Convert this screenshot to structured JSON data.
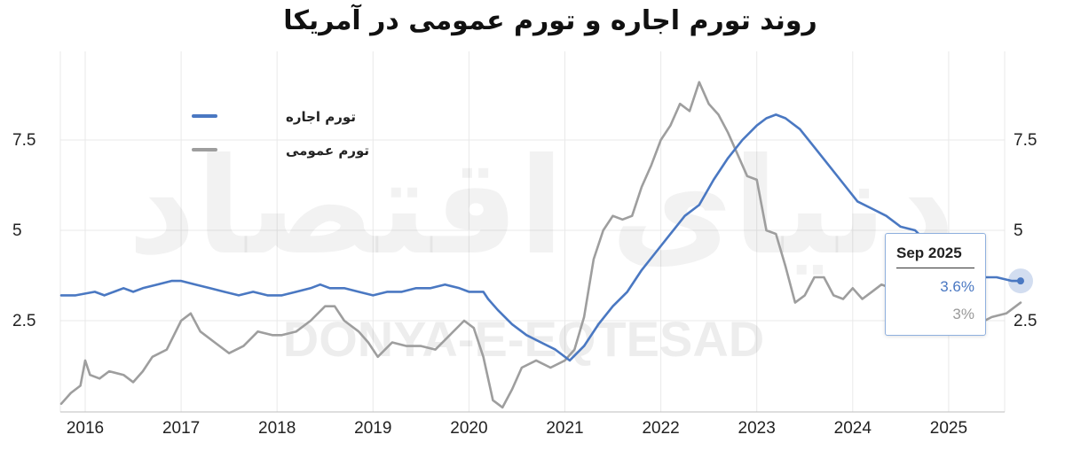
{
  "chart_data": {
    "type": "line",
    "title": "روند تورم اجاره و تورم عمومی در آمریکا",
    "watermark_text": "DONYA-E-EQTESAD",
    "watermark_logo_text": "دنیای اقتصاد",
    "x_ticks": [
      "2016",
      "2017",
      "2018",
      "2019",
      "2020",
      "2021",
      "2022",
      "2023",
      "2024",
      "2025"
    ],
    "y_ticks": [
      "2.5",
      "5",
      "7.5"
    ],
    "ylim": [
      0,
      10
    ],
    "xlim": [
      2015.76,
      2025.8
    ],
    "grid": true,
    "legend_placement": "top-left",
    "series": [
      {
        "name": "تورم اجاره",
        "color": "#4a78c2",
        "points": [
          [
            2015.75,
            3.2
          ],
          [
            2015.9,
            3.2
          ],
          [
            2016.1,
            3.3
          ],
          [
            2016.2,
            3.2
          ],
          [
            2016.3,
            3.3
          ],
          [
            2016.4,
            3.4
          ],
          [
            2016.5,
            3.3
          ],
          [
            2016.6,
            3.4
          ],
          [
            2016.75,
            3.5
          ],
          [
            2016.9,
            3.6
          ],
          [
            2017.0,
            3.6
          ],
          [
            2017.15,
            3.5
          ],
          [
            2017.3,
            3.4
          ],
          [
            2017.45,
            3.3
          ],
          [
            2017.6,
            3.2
          ],
          [
            2017.75,
            3.3
          ],
          [
            2017.9,
            3.2
          ],
          [
            2018.05,
            3.2
          ],
          [
            2018.2,
            3.3
          ],
          [
            2018.35,
            3.4
          ],
          [
            2018.45,
            3.5
          ],
          [
            2018.55,
            3.4
          ],
          [
            2018.7,
            3.4
          ],
          [
            2018.85,
            3.3
          ],
          [
            2019.0,
            3.2
          ],
          [
            2019.15,
            3.3
          ],
          [
            2019.3,
            3.3
          ],
          [
            2019.45,
            3.4
          ],
          [
            2019.6,
            3.4
          ],
          [
            2019.75,
            3.5
          ],
          [
            2019.9,
            3.4
          ],
          [
            2020.0,
            3.3
          ],
          [
            2020.15,
            3.3
          ],
          [
            2020.2,
            3.1
          ],
          [
            2020.3,
            2.8
          ],
          [
            2020.45,
            2.4
          ],
          [
            2020.6,
            2.1
          ],
          [
            2020.75,
            1.9
          ],
          [
            2020.9,
            1.7
          ],
          [
            2021.05,
            1.4
          ],
          [
            2021.2,
            1.8
          ],
          [
            2021.35,
            2.4
          ],
          [
            2021.5,
            2.9
          ],
          [
            2021.65,
            3.3
          ],
          [
            2021.8,
            3.9
          ],
          [
            2021.95,
            4.4
          ],
          [
            2022.1,
            4.9
          ],
          [
            2022.25,
            5.4
          ],
          [
            2022.4,
            5.7
          ],
          [
            2022.55,
            6.4
          ],
          [
            2022.7,
            7.0
          ],
          [
            2022.85,
            7.5
          ],
          [
            2023.0,
            7.9
          ],
          [
            2023.1,
            8.1
          ],
          [
            2023.2,
            8.2
          ],
          [
            2023.3,
            8.1
          ],
          [
            2023.45,
            7.8
          ],
          [
            2023.6,
            7.3
          ],
          [
            2023.75,
            6.8
          ],
          [
            2023.9,
            6.3
          ],
          [
            2024.05,
            5.8
          ],
          [
            2024.2,
            5.6
          ],
          [
            2024.35,
            5.4
          ],
          [
            2024.5,
            5.1
          ],
          [
            2024.65,
            5.0
          ],
          [
            2024.8,
            4.6
          ],
          [
            2024.95,
            4.2
          ],
          [
            2025.1,
            3.9
          ],
          [
            2025.3,
            3.7
          ],
          [
            2025.5,
            3.7
          ],
          [
            2025.66,
            3.6
          ],
          [
            2025.75,
            3.6
          ]
        ]
      },
      {
        "name": "تورم عمومی",
        "color": "#9e9e9e",
        "points": [
          [
            2015.75,
            0.2
          ],
          [
            2015.85,
            0.5
          ],
          [
            2015.95,
            0.7
          ],
          [
            2016.0,
            1.4
          ],
          [
            2016.05,
            1.0
          ],
          [
            2016.15,
            0.9
          ],
          [
            2016.25,
            1.1
          ],
          [
            2016.4,
            1.0
          ],
          [
            2016.5,
            0.8
          ],
          [
            2016.6,
            1.1
          ],
          [
            2016.7,
            1.5
          ],
          [
            2016.85,
            1.7
          ],
          [
            2017.0,
            2.5
          ],
          [
            2017.1,
            2.7
          ],
          [
            2017.2,
            2.2
          ],
          [
            2017.35,
            1.9
          ],
          [
            2017.5,
            1.6
          ],
          [
            2017.65,
            1.8
          ],
          [
            2017.8,
            2.2
          ],
          [
            2017.95,
            2.1
          ],
          [
            2018.05,
            2.1
          ],
          [
            2018.2,
            2.2
          ],
          [
            2018.35,
            2.5
          ],
          [
            2018.5,
            2.9
          ],
          [
            2018.6,
            2.9
          ],
          [
            2018.7,
            2.5
          ],
          [
            2018.85,
            2.2
          ],
          [
            2018.95,
            1.9
          ],
          [
            2019.05,
            1.5
          ],
          [
            2019.2,
            1.9
          ],
          [
            2019.35,
            1.8
          ],
          [
            2019.5,
            1.8
          ],
          [
            2019.65,
            1.7
          ],
          [
            2019.8,
            2.1
          ],
          [
            2019.95,
            2.5
          ],
          [
            2020.05,
            2.3
          ],
          [
            2020.15,
            1.5
          ],
          [
            2020.25,
            0.3
          ],
          [
            2020.35,
            0.1
          ],
          [
            2020.45,
            0.6
          ],
          [
            2020.55,
            1.2
          ],
          [
            2020.7,
            1.4
          ],
          [
            2020.85,
            1.2
          ],
          [
            2021.0,
            1.4
          ],
          [
            2021.1,
            1.7
          ],
          [
            2021.2,
            2.6
          ],
          [
            2021.3,
            4.2
          ],
          [
            2021.4,
            5.0
          ],
          [
            2021.5,
            5.4
          ],
          [
            2021.6,
            5.3
          ],
          [
            2021.7,
            5.4
          ],
          [
            2021.8,
            6.2
          ],
          [
            2021.9,
            6.8
          ],
          [
            2022.0,
            7.5
          ],
          [
            2022.1,
            7.9
          ],
          [
            2022.2,
            8.5
          ],
          [
            2022.3,
            8.3
          ],
          [
            2022.4,
            9.1
          ],
          [
            2022.5,
            8.5
          ],
          [
            2022.6,
            8.2
          ],
          [
            2022.7,
            7.7
          ],
          [
            2022.8,
            7.1
          ],
          [
            2022.9,
            6.5
          ],
          [
            2023.0,
            6.4
          ],
          [
            2023.1,
            5.0
          ],
          [
            2023.2,
            4.9
          ],
          [
            2023.3,
            4.0
          ],
          [
            2023.4,
            3.0
          ],
          [
            2023.5,
            3.2
          ],
          [
            2023.6,
            3.7
          ],
          [
            2023.7,
            3.7
          ],
          [
            2023.8,
            3.2
          ],
          [
            2023.9,
            3.1
          ],
          [
            2024.0,
            3.4
          ],
          [
            2024.1,
            3.1
          ],
          [
            2024.2,
            3.3
          ],
          [
            2024.3,
            3.5
          ],
          [
            2024.4,
            3.4
          ],
          [
            2024.55,
            2.9
          ],
          [
            2024.7,
            2.4
          ],
          [
            2024.85,
            2.6
          ],
          [
            2025.0,
            2.9
          ],
          [
            2025.15,
            2.7
          ],
          [
            2025.3,
            2.4
          ],
          [
            2025.45,
            2.6
          ],
          [
            2025.6,
            2.7
          ],
          [
            2025.75,
            3.0
          ]
        ]
      }
    ],
    "tooltip": {
      "date": "Sep 2025",
      "rent_value": "3.6%",
      "cpi_value": "3%"
    }
  }
}
